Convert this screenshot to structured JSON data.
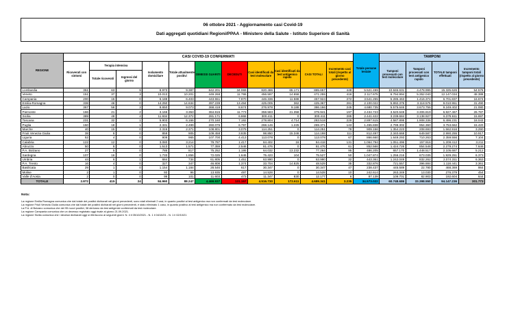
{
  "title": {
    "line1": "06 ottobre 2021 - Aggiornamento casi Covid-19",
    "line2": "Dati aggregati quotidiani Regioni/PPAA - Ministero della Salute - Istituto Superiore di Sanità"
  },
  "table": {
    "region_header": "REGIONE",
    "band_confirmed": "CASI COVID-19 CONFERMATI",
    "band_tamponi": "TAMPONI",
    "band_terapia": "Terapia intensiva",
    "columns": [
      "Ricoverati con sintomi",
      "Totale ricoverati",
      "Ingressi del giorno",
      "Isolamento domiciliare",
      "Totale attualmente positivi",
      "DIMESSI GUARITI",
      "DECEDUTI",
      "Casi identificati da test molecolare",
      "Casi identificati da test antigenico rapido",
      "CASI TOTALI",
      "Incremento casi totali (rispetto al giorno precedente)",
      "Totale persone testate",
      "Tamponi processati con test molecolare",
      "Tamponi processati con test antigenico rapido",
      "TOTALE tamponi effettuati",
      "Incremento tamponi totali (rispetto al giorno precedente)"
    ],
    "rows": [
      {
        "name": "Lombardia",
        "values": [
          "351",
          "63",
          "9",
          "8.973",
          "9.387",
          "842.201",
          "34.069",
          "820.486",
          "65.171",
          "885.657",
          "448",
          "5.521.499",
          "10.846.631",
          "4.478.995",
          "15.325.626",
          "54.576"
        ]
      },
      {
        "name": "Veneto",
        "values": [
          "151",
          "37",
          "3",
          "10.013",
          "10.201",
          "449.268",
          "11.786",
          "456.597",
          "14.658",
          "471.255",
          "416",
          "2.117.675",
          "6.794.994",
          "5.352.040",
          "12.147.034",
          "48.388"
        ]
      },
      {
        "name": "Campania",
        "values": [
          "200",
          "15",
          "0",
          "6.188",
          "6.403",
          "443.551",
          "7.970",
          "446.336",
          "11.588",
          "457.924",
          "272",
          "3.541.255",
          "5.285.463",
          "1.416.374",
          "6.701.837",
          "16.674"
        ]
      },
      {
        "name": "Emilia-Romagna",
        "values": [
          "338",
          "46",
          "0",
          "14.250",
          "14.634",
          "397.239",
          "13.494",
          "425.005",
          "362",
          "425.367",
          "281",
          "2.100.022",
          "5.892.375",
          "3.118.576",
          "9.010.951",
          "31.490"
        ]
      },
      {
        "name": "Lazio",
        "values": [
          "367",
          "56",
          "3",
          "8.650",
          "9.073",
          "368.419",
          "8.674",
          "376.978",
          "9.188",
          "386.166",
          "245",
          "4.680.735",
          "5.575.646",
          "3.673.756",
          "9.249.402",
          "21.080"
        ]
      },
      {
        "name": "Piemonte",
        "values": [
          "166",
          "21",
          "2",
          "3.166",
          "3.353",
          "364.815",
          "11.773",
          "358.583",
          "21.358",
          "379.941",
          "197",
          "2.434.723",
          "3.520.648",
          "3.306.819",
          "6.827.467",
          "26.787"
        ]
      },
      {
        "name": "Sicilia",
        "values": [
          "389",
          "49",
          "4",
          "11.934",
          "12.372",
          "281.171",
          "6.868",
          "300.411",
          "0",
          "300.411",
          "285",
          "2.441.422",
          "3.239.684",
          "3.138.927",
          "6.378.611",
          "15.697"
        ]
      },
      {
        "name": "Toscana",
        "values": [
          "231",
          "32",
          "1",
          "5.903",
          "6.166",
          "270.160",
          "7.192",
          "278.804",
          "4.714",
          "283.518",
          "229",
          "2.897.615",
          "4.587.895",
          "1.908.336",
          "6.496.231",
          "18.043"
        ]
      },
      {
        "name": "Puglia",
        "values": [
          "150",
          "18",
          "1",
          "2.331",
          "2.499",
          "260.075",
          "6.797",
          "268.146",
          "1.225",
          "269.371",
          "143",
          "1.455.838",
          "2.799.302",
          "954.360",
          "3.753.662",
          "15.420"
        ]
      },
      {
        "name": "Marche",
        "values": [
          "40",
          "15",
          "0",
          "2.316",
          "2.371",
          "108.801",
          "3.079",
          "114.251",
          "0",
          "114.251",
          "78",
          "909.156",
          "1.354.223",
          "208.693",
          "1.562.916",
          "3.290"
        ]
      },
      {
        "name": "Friuli Venezia Giulia",
        "values": [
          "38",
          "8",
          "0",
          "859",
          "905",
          "109.458",
          "3.835",
          "98.850",
          "15.348",
          "114.198",
          "111",
          "812.497",
          "2.340.668",
          "649.587",
          "2.990.255",
          "10.917"
        ]
      },
      {
        "name": "Liguria",
        "values": [
          "52",
          "4",
          "0",
          "909",
          "965",
          "107.700",
          "4.413",
          "113.078",
          "0",
          "113.078",
          "67",
          "866.660",
          "1.649.293",
          "710.263",
          "2.359.556",
          "7.104"
        ]
      },
      {
        "name": "Calabria",
        "values": [
          "122",
          "12",
          "0",
          "3.080",
          "3.214",
          "79.787",
          "1.417",
          "84.402",
          "16",
          "84.418",
          "131",
          "1.064.794",
          "1.051.496",
          "157.916",
          "1.209.412",
          "3.211"
        ]
      },
      {
        "name": "Abruzzo",
        "values": [
          "50",
          "8",
          "0",
          "1.513",
          "1.571",
          "77.359",
          "2.546",
          "81.476",
          "0",
          "81.476",
          "61",
          "852.566",
          "1.424.726",
          "854.548",
          "2.279.274",
          "7.646"
        ]
      },
      {
        "name": "P.A. Bolzano",
        "values": [
          "27",
          "5",
          "0",
          "785",
          "817",
          "75.252",
          "1.195",
          "64.032",
          "13.232",
          "77.264",
          "95",
          "486.205",
          "657.170",
          "1.448.517",
          "2.105.687",
          "5.212"
        ]
      },
      {
        "name": "Sardegna",
        "values": [
          "107",
          "16",
          "0",
          "1.733",
          "1.856",
          "72.025",
          "1.646",
          "75.423",
          "104",
          "75.527",
          "50",
          "1.047.874",
          "1.256.216",
          "673.035",
          "1.929.251",
          "6.373"
        ]
      },
      {
        "name": "Umbria",
        "values": [
          "44",
          "6",
          "1",
          "684",
          "734",
          "61.805",
          "1.451",
          "63.990",
          "0",
          "63.990",
          "32",
          "443.361",
          "1.242.049",
          "832.262",
          "2.074.311",
          "6.363"
        ]
      },
      {
        "name": "P.A. Trento",
        "values": [
          "16",
          "4",
          "0",
          "327",
          "347",
          "46.808",
          "1.374",
          "33.704",
          "14.825",
          "48.529",
          "35",
          "332.876",
          "721.557",
          "396.884",
          "1.118.441",
          "3.361"
        ]
      },
      {
        "name": "Basilicata",
        "values": [
          "29",
          "1",
          "0",
          "1.154",
          "1.184",
          "28.546",
          "617",
          "30.347",
          "0",
          "30.347",
          "47",
          "238.437",
          "445.589",
          "22.780",
          "468.369",
          "984"
        ]
      },
      {
        "name": "Molise",
        "values": [
          "2",
          "1",
          "0",
          "93",
          "96",
          "13.935",
          "497",
          "14.528",
          "0",
          "14.528",
          "10",
          "242.614",
          "263.349",
          "13.030",
          "276.379",
          "454"
        ]
      },
      {
        "name": "Valle d'Aosta",
        "values": [
          "2",
          "0",
          "0",
          "99",
          "101",
          "11.603",
          "473",
          "11.347",
          "830",
          "12.177",
          "6",
          "87.139",
          "109.701",
          "82.903",
          "192.604",
          "644"
        ]
      }
    ],
    "total": {
      "label": "TOTALE",
      "values": [
        "2.872",
        "415",
        "24",
        "84.960",
        "88.247",
        "4.469.937",
        "131.157",
        "4.516.730",
        "172.611",
        "4.689.341",
        "3.235",
        "34.573.022",
        "60.748.686",
        "33.398.550",
        "94.147.236",
        "301.773"
      ]
    }
  },
  "notes": {
    "heading": "Nota:",
    "lines": [
      "La regione Emilia Romagna comunica che dal totale dei positivi dichiarati nei giorni precedenti, sono stati eliminati 2 casi, in quanto positivi al test antigenico ma non confermati da test molecolare.",
      "La regione Friuli Venezia Giulia comunica che dal totale dei positivi dichiarati nei giorni precedenti, è stato eliminato 1 caso, in quanto positivo al test antigenico ma non confermato da test molecolare.",
      "La P.A. di Bolzano comunica che dei 95 nuovi positivi, 38 derivano da test antigenici confermati da test molecolare.",
      "La regione Campania comunica che un decesso registrato oggi risale al giorno 21.09.2021.",
      "La regione Sicilia comunica che i decessi dichiarati oggi si riferiscono ai seguenti giorni: N. 4 il 05/10/2021 - N. 1 il 04/10/21 - N. 1 il 02/10/21"
    ]
  },
  "colors": {
    "header_gray": "#BFBFBF",
    "recovered_green": "#00B050",
    "deceased_red": "#FF0000",
    "cases_yellow": "#FFC000",
    "tested_blue": "#00B0F0",
    "tamponi_lightblue": "#BDD7EE"
  }
}
